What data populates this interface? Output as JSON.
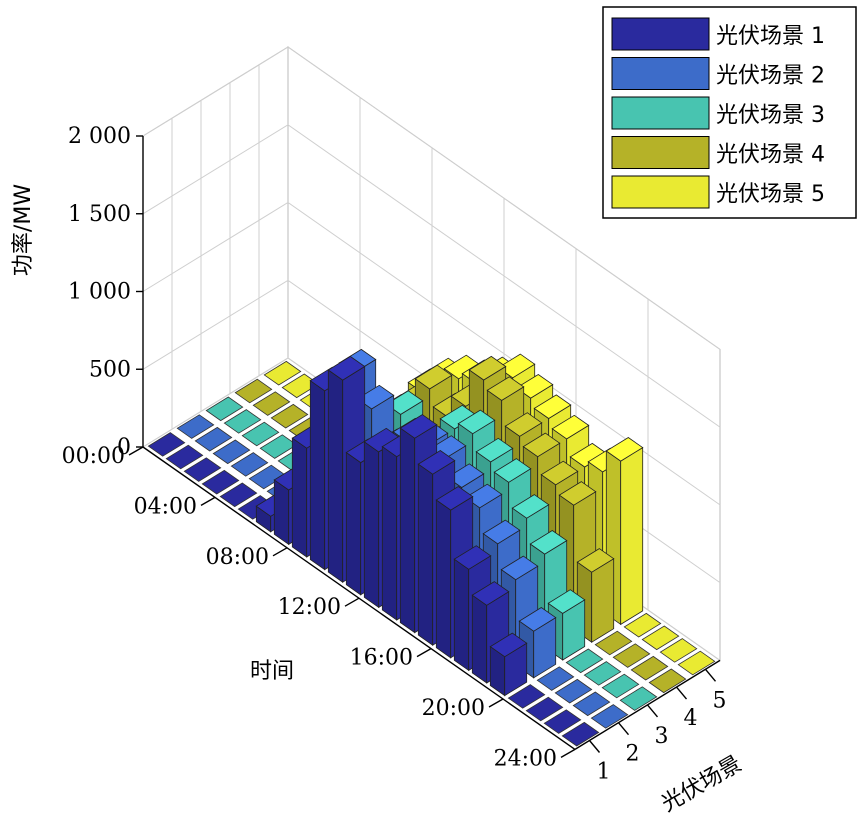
{
  "chart_data": {
    "type": "bar3d",
    "ylabel": "功率/MW",
    "xlabel": "时间",
    "zlabel": "光伏场景",
    "zlim": [
      0,
      2000
    ],
    "z_ticks": [
      "0",
      "500",
      "1 000",
      "1 500",
      "2 000"
    ],
    "time_ticks": [
      "00:00",
      "04:00",
      "08:00",
      "12:00",
      "16:00",
      "20:00",
      "24:00"
    ],
    "scenario_ticks": [
      "1",
      "2",
      "3",
      "4",
      "5"
    ],
    "hours": [
      0,
      1,
      2,
      3,
      4,
      5,
      6,
      7,
      8,
      9,
      10,
      11,
      12,
      13,
      14,
      15,
      16,
      17,
      18,
      19,
      20,
      21,
      22,
      23
    ],
    "legend_placement": "top-right",
    "series": [
      {
        "name": "光伏场景 1",
        "color": "#2a2a9e",
        "values": [
          0,
          0,
          0,
          0,
          0,
          0,
          100,
          350,
          700,
          1150,
          1300,
          850,
          1000,
          1050,
          1250,
          1100,
          950,
          650,
          500,
          250,
          0,
          0,
          0,
          0
        ]
      },
      {
        "name": "光伏场景 2",
        "color": "#3d6cc9",
        "values": [
          0,
          0,
          0,
          0,
          0,
          0,
          100,
          300,
          650,
          1150,
          1000,
          800,
          950,
          1000,
          1000,
          900,
          850,
          700,
          550,
          300,
          0,
          0,
          0,
          0
        ]
      },
      {
        "name": "光伏场景 3",
        "color": "#48c4b0",
        "values": [
          0,
          0,
          0,
          0,
          0,
          0,
          120,
          350,
          600,
          700,
          850,
          750,
          800,
          1000,
          1050,
          950,
          900,
          750,
          600,
          300,
          0,
          0,
          0,
          0
        ]
      },
      {
        "name": "光伏场景 4",
        "color": "#b5b228",
        "values": [
          0,
          0,
          0,
          0,
          0,
          0,
          100,
          300,
          550,
          700,
          900,
          800,
          950,
          1200,
          1150,
          1000,
          950,
          850,
          800,
          450,
          0,
          0,
          0,
          0
        ]
      },
      {
        "name": "光伏场景 5",
        "color": "#e9ea32",
        "values": [
          0,
          0,
          0,
          0,
          0,
          0,
          120,
          350,
          600,
          750,
          850,
          900,
          1000,
          1100,
          1050,
          1000,
          950,
          850,
          900,
          1050,
          0,
          0,
          0,
          0
        ]
      }
    ]
  }
}
